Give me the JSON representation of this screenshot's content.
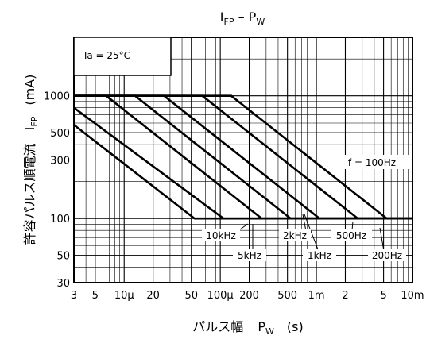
{
  "chart_data": {
    "type": "line",
    "title_main": "I",
    "title_sub": "FP",
    "title_dash": " – P",
    "title_sub2": "W",
    "xlabel_main": "パルス幅",
    "xlabel_sym": "P",
    "xlabel_sub": "W",
    "xlabel_unit": "(s)",
    "ylabel_main": "許容パルス順電流",
    "ylabel_sym": "I",
    "ylabel_sub": "FP",
    "ylabel_unit": "(mA)",
    "condition": "Ta = 25°C",
    "x_scale": "log",
    "y_scale": "log",
    "xlim": [
      3e-06,
      0.01
    ],
    "ylim": [
      30,
      3000
    ],
    "grid": true,
    "x_ticks": [
      {
        "v": 3e-06,
        "label": "3"
      },
      {
        "v": 5e-06,
        "label": "5"
      },
      {
        "v": 1e-05,
        "label": "10μ"
      },
      {
        "v": 2e-05,
        "label": "20"
      },
      {
        "v": 5e-05,
        "label": "50"
      },
      {
        "v": 0.0001,
        "label": "100μ"
      },
      {
        "v": 0.0002,
        "label": "200"
      },
      {
        "v": 0.0005,
        "label": "500"
      },
      {
        "v": 0.001,
        "label": "1m"
      },
      {
        "v": 0.002,
        "label": "2"
      },
      {
        "v": 0.005,
        "label": "5"
      },
      {
        "v": 0.01,
        "label": "10m"
      }
    ],
    "y_ticks": [
      {
        "v": 30,
        "label": "30"
      },
      {
        "v": 50,
        "label": "50"
      },
      {
        "v": 100,
        "label": "100"
      },
      {
        "v": 300,
        "label": "300"
      },
      {
        "v": 500,
        "label": "500"
      },
      {
        "v": 1000,
        "label": "1000"
      }
    ],
    "series": [
      {
        "name": "f = 100Hz",
        "points": [
          [
            3e-06,
            1000
          ],
          [
            0.00013,
            1000
          ],
          [
            0.0054,
            100
          ],
          [
            0.01,
            100
          ]
        ]
      },
      {
        "name": "200Hz",
        "points": [
          [
            3e-06,
            1000
          ],
          [
            6.5e-05,
            1000
          ],
          [
            0.0027,
            100
          ],
          [
            0.01,
            100
          ]
        ]
      },
      {
        "name": "500Hz",
        "points": [
          [
            3e-06,
            1000
          ],
          [
            2.6e-05,
            1000
          ],
          [
            0.00108,
            100
          ],
          [
            0.01,
            100
          ]
        ]
      },
      {
        "name": "1kHz",
        "points": [
          [
            3e-06,
            1000
          ],
          [
            1.3e-05,
            1000
          ],
          [
            0.00054,
            100
          ],
          [
            0.01,
            100
          ]
        ]
      },
      {
        "name": "2kHz",
        "points": [
          [
            3e-06,
            1000
          ],
          [
            6.5e-06,
            1000
          ],
          [
            0.00027,
            100
          ],
          [
            0.01,
            100
          ]
        ]
      },
      {
        "name": "5kHz",
        "points": [
          [
            3e-06,
            800
          ],
          [
            0.000108,
            100
          ],
          [
            0.01,
            100
          ]
        ]
      },
      {
        "name": "10kHz",
        "points": [
          [
            3e-06,
            580
          ],
          [
            5.4e-05,
            100
          ],
          [
            0.01,
            100
          ]
        ]
      }
    ]
  }
}
